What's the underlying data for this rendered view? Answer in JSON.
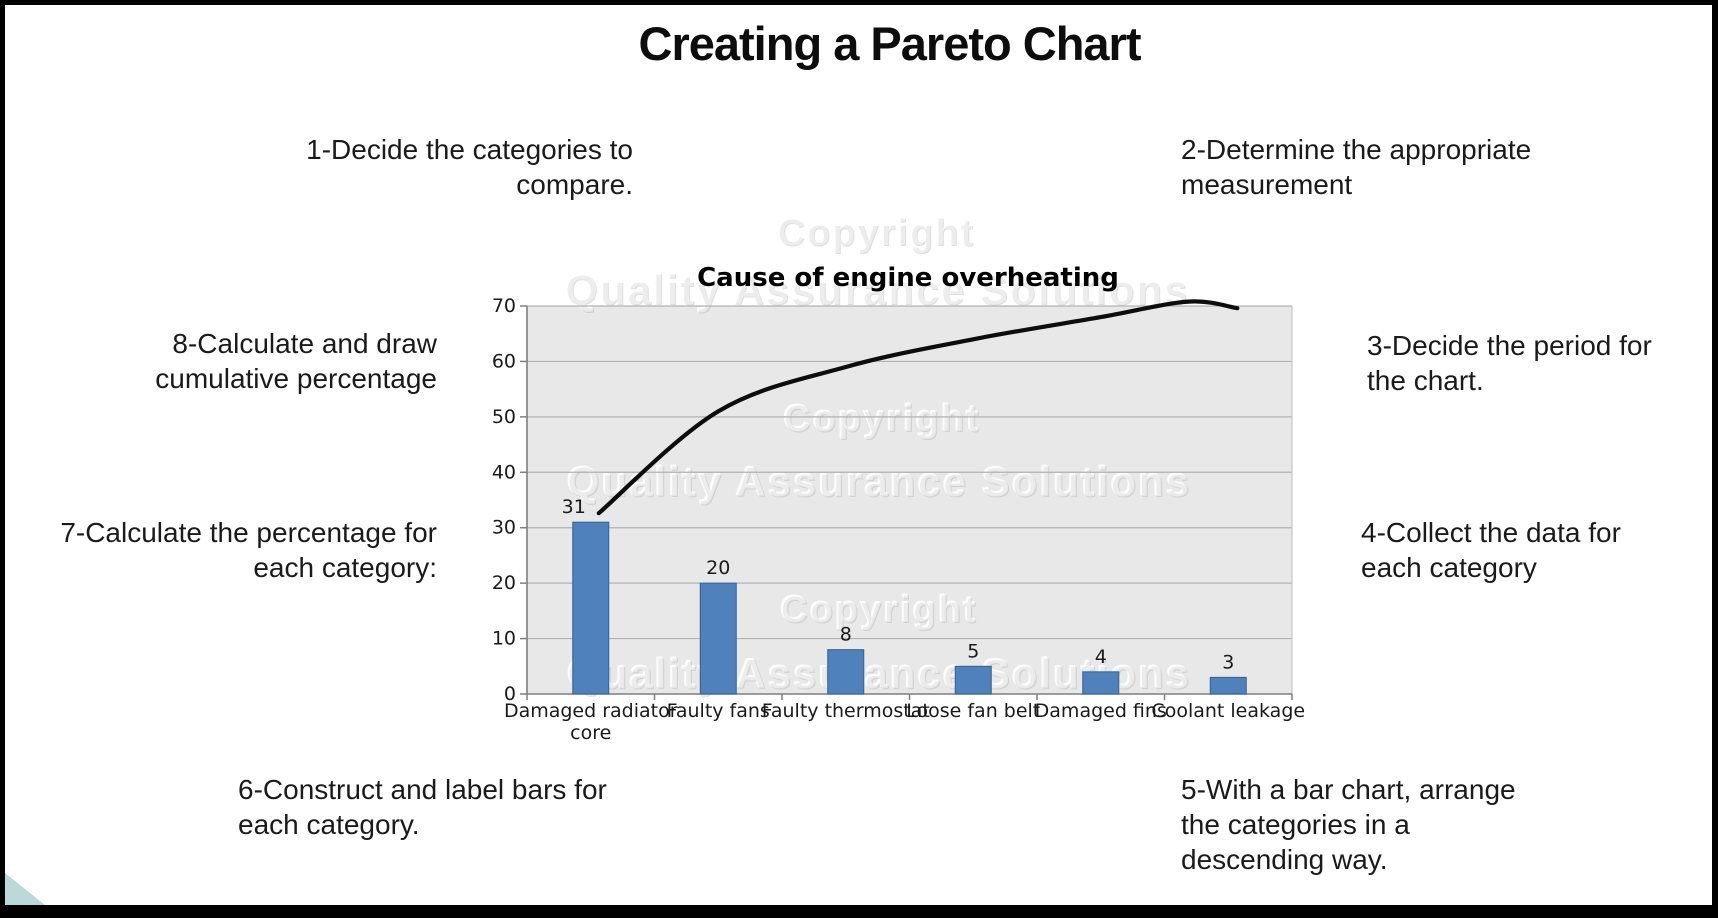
{
  "slide": {
    "title": "Creating a Pareto Chart"
  },
  "steps": {
    "s1": {
      "text": "1-Decide the categories to\ncompare."
    },
    "s2": {
      "text": "2-Determine the appropriate\nmeasurement"
    },
    "s3": {
      "text": "3-Decide the period for\nthe chart."
    },
    "s4": {
      "text": "4-Collect the data for\neach category"
    },
    "s5": {
      "text": "5-With a bar chart, arrange\nthe categories in a\ndescending way."
    },
    "s6": {
      "text": "6-Construct and label bars for\neach category."
    },
    "s7": {
      "text": "7-Calculate the percentage for\neach category:"
    },
    "s8": {
      "text": "8-Calculate and draw\ncumulative percentage"
    }
  },
  "watermark": {
    "copyright_text": "Copyright",
    "brand_text": "Quality Assurance Solutions"
  },
  "chart_data": {
    "type": "bar",
    "subtype": "pareto",
    "title": "Cause of engine overheating",
    "categories": [
      "Damaged radiator core",
      "Faulty fans",
      "Faulty thermostat",
      "Loose fan belt",
      "Damaged fins",
      "Coolant leakage"
    ],
    "values": [
      31,
      20,
      8,
      5,
      4,
      3
    ],
    "value_labels": [
      "31",
      "20",
      "8",
      "5",
      "4",
      "3"
    ],
    "cumulative": [
      31,
      51,
      59,
      64,
      68,
      71
    ],
    "xlabel": "",
    "ylabel": "",
    "ylim": [
      0,
      70
    ],
    "y_ticks": [
      0,
      10,
      20,
      30,
      40,
      50,
      60,
      70
    ],
    "grid": "horizontal",
    "legend": "none",
    "bar_color": "#4f81bd",
    "bar_border_color": "#35618f",
    "line_color": "#0d0d0d",
    "plot_bg_color": "#e8e8e8",
    "grid_color": "#b2b2b2",
    "axis_color": "#7f7f7f",
    "label_color": "#1a1a1a"
  }
}
